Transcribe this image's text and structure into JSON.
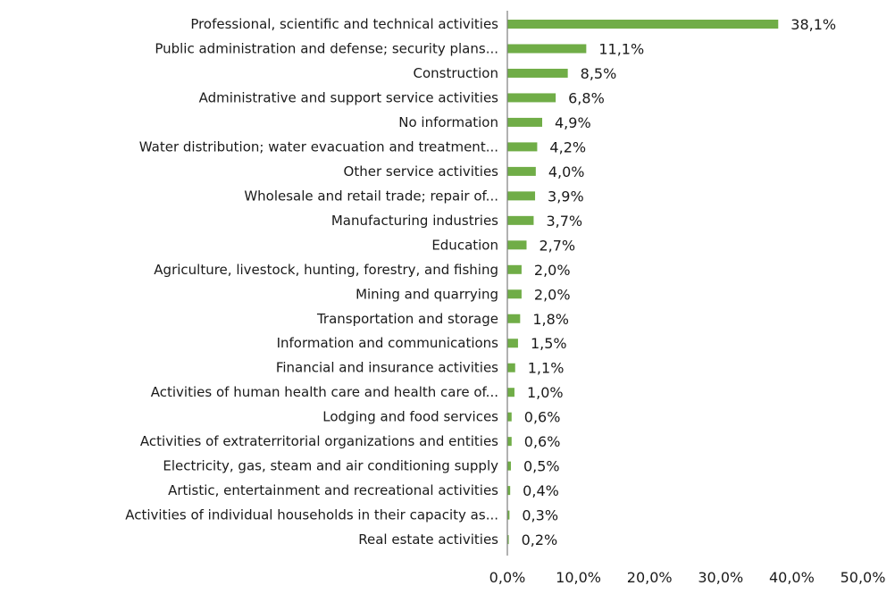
{
  "chart_data": {
    "type": "bar",
    "orientation": "horizontal",
    "categories": [
      "Professional, scientific and technical activities",
      "Public administration and defense; security plans...",
      "Construction",
      "Administrative and support service activities",
      "No information",
      "Water distribution; water evacuation and treatment...",
      "Other service activities",
      "Wholesale and retail trade; repair of...",
      "Manufacturing industries",
      "Education",
      "Agriculture, livestock, hunting, forestry, and fishing",
      "Mining and quarrying",
      "Transportation and storage",
      "Information and communications",
      "Financial and insurance activities",
      "Activities of human health care and health care of...",
      "Lodging and food services",
      "Activities of extraterritorial organizations and entities",
      "Electricity, gas, steam and air conditioning supply",
      "Artistic, entertainment and recreational activities",
      "Activities of individual households in their capacity as...",
      "Real estate activities"
    ],
    "values": [
      38.1,
      11.1,
      8.5,
      6.8,
      4.9,
      4.2,
      4.0,
      3.9,
      3.7,
      2.7,
      2.0,
      2.0,
      1.8,
      1.5,
      1.1,
      1.0,
      0.6,
      0.6,
      0.5,
      0.4,
      0.3,
      0.2
    ],
    "value_labels": [
      "38,1%",
      "11,1%",
      "8,5%",
      "6,8%",
      "4,9%",
      "4,2%",
      "4,0%",
      "3,9%",
      "3,7%",
      "2,7%",
      "2,0%",
      "2,0%",
      "1,8%",
      "1,5%",
      "1,1%",
      "1,0%",
      "0,6%",
      "0,6%",
      "0,5%",
      "0,4%",
      "0,3%",
      "0,2%"
    ],
    "xlim": [
      0,
      50
    ],
    "x_ticks": [
      0,
      10,
      20,
      30,
      40,
      50
    ],
    "x_tick_labels": [
      "0,0%",
      "10,0%",
      "20,0%",
      "30,0%",
      "40,0%",
      "50,0%"
    ],
    "grid": false,
    "bar_color": "#70ad47",
    "axis_color": "#7f7f7f"
  }
}
